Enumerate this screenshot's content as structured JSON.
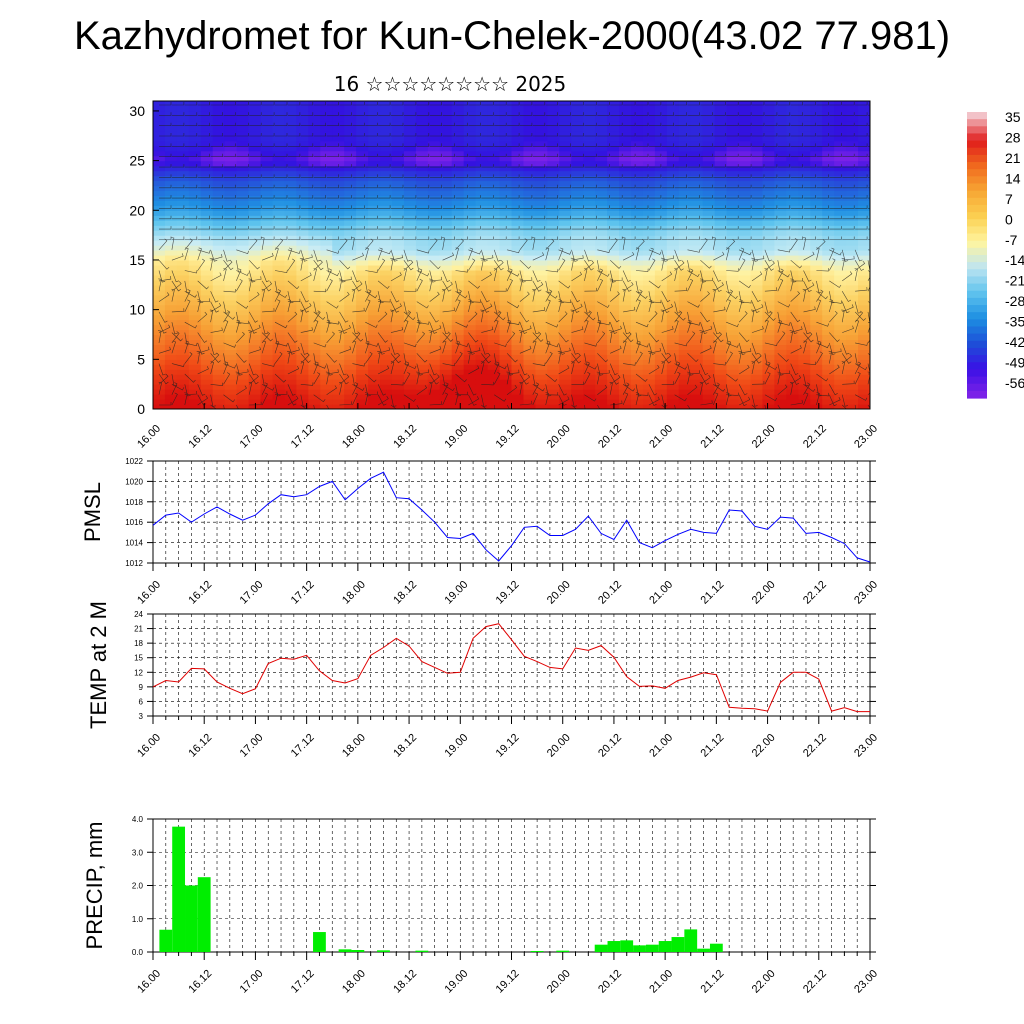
{
  "title": "Kazhydromet for Kun-Chelek-2000(43.02 77.981)",
  "subtitle": "16 ☆☆☆☆☆☆☆☆ 2025",
  "time_labels": [
    "16.00",
    "16.12",
    "17.00",
    "17.12",
    "18.00",
    "18.12",
    "19.00",
    "19.12",
    "20.00",
    "20.12",
    "21.00",
    "21.12",
    "22.00",
    "22.12",
    "23.00"
  ],
  "chart_data": [
    {
      "type": "heatmap",
      "name": "upper-air temperature cross-section with wind barbs",
      "x_range": [
        "16.00",
        "23.00"
      ],
      "ylim": [
        0,
        31
      ],
      "yticks": [
        0,
        5,
        10,
        15,
        20,
        25,
        30
      ],
      "colorbar_labels": [
        "35",
        "28",
        "21",
        "14",
        "7",
        "0",
        "-7",
        "-14",
        "-21",
        "-28",
        "-35",
        "-42",
        "-49",
        "-56"
      ],
      "colorbar_colors": [
        "#f2c2c8",
        "#e01c1c",
        "#f06a1e",
        "#f7a734",
        "#fbd052",
        "#fff5a0",
        "#bfe5f0",
        "#5fc3ee",
        "#1d8fe2",
        "#1d4fd8",
        "#3a10e6",
        "#7a22e8"
      ],
      "profile_levels": [
        0,
        5,
        10,
        15,
        17,
        20,
        23,
        25,
        27,
        31
      ],
      "profile_temps": [
        20,
        12,
        5,
        -2,
        -10,
        -28,
        -40,
        -55,
        -50,
        -50
      ],
      "warm_core": {
        "time": 19.07,
        "temp_bonus": 10
      }
    },
    {
      "type": "line",
      "ylabel": "PMSL",
      "ylim": [
        1012,
        1022
      ],
      "yticks": [
        1012,
        1014,
        1016,
        1018,
        1020,
        1022
      ],
      "color": "#0000ff",
      "x_start": 16.0,
      "x_step": 0.125,
      "values": [
        1015.7,
        1016.7,
        1016.9,
        1016.0,
        1016.8,
        1017.5,
        1016.8,
        1016.2,
        1016.7,
        1017.8,
        1018.7,
        1018.5,
        1018.7,
        1019.5,
        1020.0,
        1018.2,
        1019.3,
        1020.3,
        1020.9,
        1018.4,
        1018.3,
        1017.2,
        1016.0,
        1014.5,
        1014.4,
        1014.9,
        1013.3,
        1012.2,
        1013.7,
        1015.5,
        1015.6,
        1014.7,
        1014.7,
        1015.3,
        1016.6,
        1014.9,
        1014.3,
        1016.2,
        1014.0,
        1013.5,
        1014.2,
        1014.8,
        1015.3,
        1015.0,
        1014.9,
        1017.2,
        1017.1,
        1015.6,
        1015.3,
        1016.5,
        1016.4,
        1014.9,
        1015.0,
        1014.5,
        1013.9,
        1012.5,
        1012.1
      ]
    },
    {
      "type": "line",
      "ylabel": "TEMP at 2 M",
      "ylim": [
        3,
        24
      ],
      "yticks": [
        3,
        6,
        9,
        12,
        15,
        18,
        21,
        24
      ],
      "color": "#e00000",
      "x_start": 16.0,
      "x_step": 0.125,
      "values": [
        9.0,
        10.3,
        10.0,
        12.8,
        12.7,
        10.0,
        8.7,
        7.6,
        8.6,
        13.8,
        14.9,
        14.7,
        15.5,
        12.3,
        10.3,
        9.8,
        10.7,
        15.5,
        17.1,
        19.0,
        17.4,
        14.2,
        13.0,
        11.8,
        12.0,
        19.0,
        21.4,
        22.0,
        18.7,
        15.3,
        14.2,
        13.0,
        12.7,
        17.0,
        16.5,
        17.5,
        15.1,
        11.1,
        9.1,
        9.2,
        8.7,
        10.3,
        11.0,
        11.9,
        11.5,
        4.8,
        4.6,
        4.5,
        4.0,
        9.9,
        12.0,
        12.0,
        10.6,
        4.0,
        4.7,
        3.9,
        3.9
      ]
    },
    {
      "type": "bar",
      "ylabel": "PRECIP, mm",
      "ylim": [
        0,
        4
      ],
      "yticks": [
        "0.0",
        "1.0",
        "2.0",
        "3.0",
        "4.0"
      ],
      "color": "#00ee00",
      "x_start": 16.0,
      "x_step": 0.125,
      "values": [
        0,
        0.67,
        3.77,
        2.0,
        2.25,
        0,
        0,
        0,
        0,
        0,
        0,
        0,
        0,
        0.6,
        0,
        0.08,
        0.06,
        0,
        0.05,
        0,
        0,
        0.04,
        0,
        0,
        0,
        0,
        0,
        0,
        0,
        0,
        0.03,
        0,
        0.04,
        0,
        0,
        0.22,
        0.33,
        0.35,
        0.2,
        0.22,
        0.33,
        0.45,
        0.68,
        0.1,
        0.25,
        0,
        0,
        0,
        0,
        0,
        0,
        0,
        0,
        0,
        0,
        0,
        0
      ]
    }
  ]
}
